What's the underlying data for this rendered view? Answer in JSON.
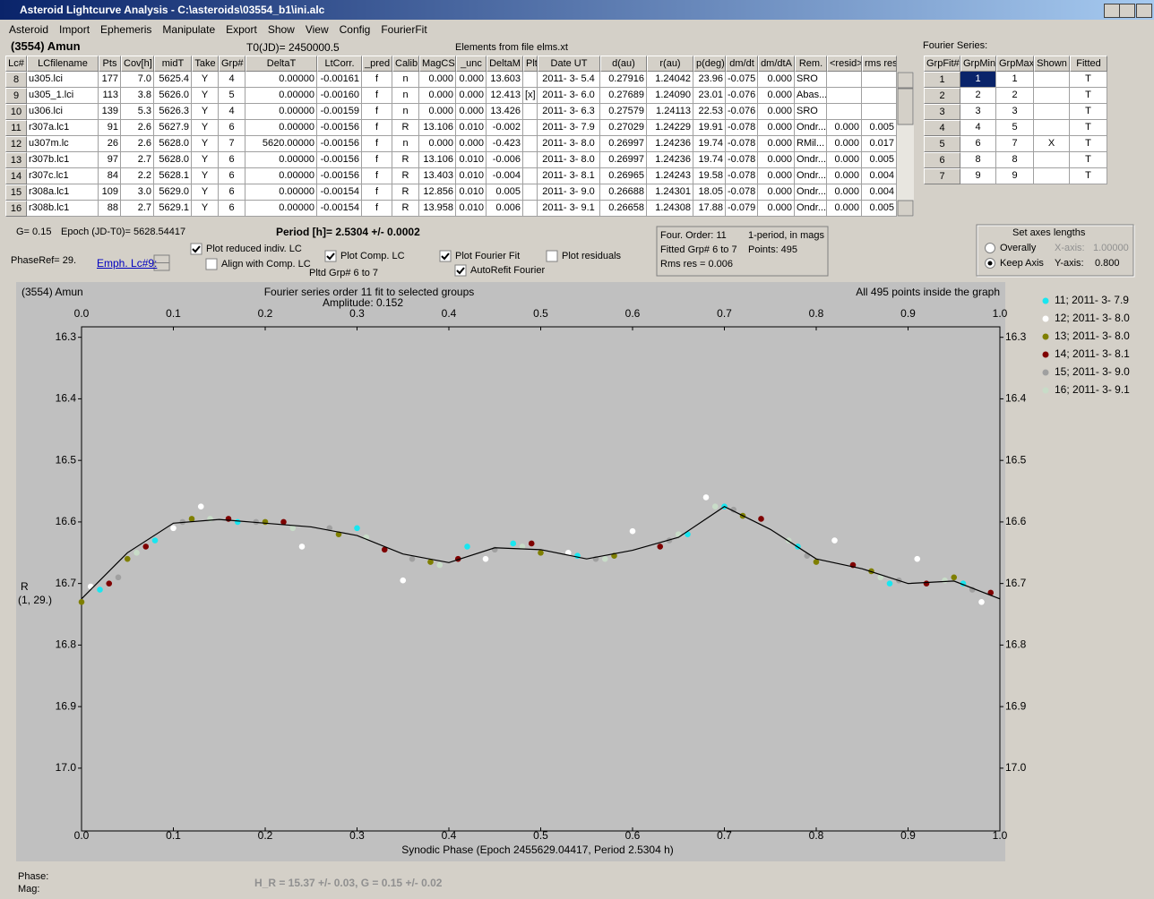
{
  "window": {
    "title": "Asteroid Lightcurve Analysis - C:\\asteroids\\03554_b1\\ini.alc"
  },
  "menu": [
    "Asteroid",
    "Import",
    "Ephemeris",
    "Manipulate",
    "Export",
    "Show",
    "View",
    "Config",
    "FourierFit"
  ],
  "header": {
    "object": "(3554) Amun",
    "t0": "T0(JD)= 2450000.5",
    "elements": "Elements from file elms.xt",
    "fourier_title": "Fourier Series:"
  },
  "table": {
    "columns": [
      "Lc#",
      "LCfilename",
      "Pts",
      "Cov[h]",
      "midT",
      "Take",
      "Grp#",
      "DeltaT",
      "LtCorr.",
      "_pred",
      "Calib.",
      "MagCS",
      "_unc",
      "DeltaM",
      "Plt",
      "Date UT",
      "d(au)",
      "r(au)",
      "p(deg)",
      "dm/dt",
      "dm/dtA",
      "Rem.",
      "<resid>",
      "rms res"
    ],
    "rows": [
      [
        "8",
        "u305.lci",
        "177",
        "7.0",
        "5625.4",
        "Y",
        "4",
        "0.00000",
        "-0.00161",
        "f",
        "n",
        "0.000",
        "0.000",
        "13.603",
        null,
        "2011- 3- 5.4",
        "0.27916",
        "1.24042",
        "23.96",
        "-0.075",
        "0.000",
        "SRO",
        null,
        null
      ],
      [
        "9",
        "u305_1.lci",
        "113",
        "3.8",
        "5626.0",
        "Y",
        "5",
        "0.00000",
        "-0.00160",
        "f",
        "n",
        "0.000",
        "0.000",
        "12.413",
        "[x]",
        "2011- 3- 6.0",
        "0.27689",
        "1.24090",
        "23.01",
        "-0.076",
        "0.000",
        "Abas...",
        null,
        null
      ],
      [
        "10",
        "u306.lci",
        "139",
        "5.3",
        "5626.3",
        "Y",
        "4",
        "0.00000",
        "-0.00159",
        "f",
        "n",
        "0.000",
        "0.000",
        "13.426",
        null,
        "2011- 3- 6.3",
        "0.27579",
        "1.24113",
        "22.53",
        "-0.076",
        "0.000",
        "SRO",
        null,
        null
      ],
      [
        "11",
        "r307a.lc1",
        "91",
        "2.6",
        "5627.9",
        "Y",
        "6",
        "0.00000",
        "-0.00156",
        "f",
        "R",
        "13.106",
        "0.010",
        "-0.002",
        null,
        "2011- 3- 7.9",
        "0.27029",
        "1.24229",
        "19.91",
        "-0.078",
        "0.000",
        "Ondr...",
        "0.000",
        "0.005"
      ],
      [
        "12",
        "u307m.lc",
        "26",
        "2.6",
        "5628.0",
        "Y",
        "7",
        "5620.00000",
        "-0.00156",
        "f",
        "n",
        "0.000",
        "0.000",
        "-0.423",
        null,
        "2011- 3- 8.0",
        "0.26997",
        "1.24236",
        "19.74",
        "-0.078",
        "0.000",
        "RMil...",
        "0.000",
        "0.017"
      ],
      [
        "13",
        "r307b.lc1",
        "97",
        "2.7",
        "5628.0",
        "Y",
        "6",
        "0.00000",
        "-0.00156",
        "f",
        "R",
        "13.106",
        "0.010",
        "-0.006",
        null,
        "2011- 3- 8.0",
        "0.26997",
        "1.24236",
        "19.74",
        "-0.078",
        "0.000",
        "Ondr...",
        "0.000",
        "0.005"
      ],
      [
        "14",
        "r307c.lc1",
        "84",
        "2.2",
        "5628.1",
        "Y",
        "6",
        "0.00000",
        "-0.00156",
        "f",
        "R",
        "13.403",
        "0.010",
        "-0.004",
        null,
        "2011- 3- 8.1",
        "0.26965",
        "1.24243",
        "19.58",
        "-0.078",
        "0.000",
        "Ondr...",
        "0.000",
        "0.004"
      ],
      [
        "15",
        "r308a.lc1",
        "109",
        "3.0",
        "5629.0",
        "Y",
        "6",
        "0.00000",
        "-0.00154",
        "f",
        "R",
        "12.856",
        "0.010",
        "0.005",
        null,
        "2011- 3- 9.0",
        "0.26688",
        "1.24301",
        "18.05",
        "-0.078",
        "0.000",
        "Ondr...",
        "0.000",
        "0.004"
      ],
      [
        "16",
        "r308b.lc1",
        "88",
        "2.7",
        "5629.1",
        "Y",
        "6",
        "0.00000",
        "-0.00154",
        "f",
        "R",
        "13.958",
        "0.010",
        "0.006",
        null,
        "2011- 3- 9.1",
        "0.26658",
        "1.24308",
        "17.88",
        "-0.079",
        "0.000",
        "Ondr...",
        "0.000",
        "0.005"
      ]
    ]
  },
  "fourier_table": {
    "columns": [
      "GrpFit#",
      "GrpMin",
      "GrpMax",
      "Shown",
      "Fitted"
    ],
    "rows": [
      [
        "1",
        "1",
        "1",
        null,
        "T"
      ],
      [
        "2",
        "2",
        "2",
        null,
        "T"
      ],
      [
        "3",
        "3",
        "3",
        null,
        "T"
      ],
      [
        "4",
        "4",
        "5",
        null,
        "T"
      ],
      [
        "5",
        "6",
        "7",
        "X",
        "T"
      ],
      [
        "6",
        "8",
        "8",
        null,
        "T"
      ],
      [
        "7",
        "9",
        "9",
        null,
        "T"
      ]
    ]
  },
  "info": {
    "g": "G= 0.15",
    "epoch": "Epoch (JD-T0)= 5628.54417",
    "period": "Period [h]= 2.5304 +/- 0.0002",
    "phase_ref": "PhaseRef= 29.",
    "emph": "Emph. Lc#9:",
    "pltd_grp": "Pltd Grp#  6   to   7"
  },
  "checkboxes": [
    {
      "label": "Plot reduced indiv. LC",
      "checked": true
    },
    {
      "label": "Align with Comp. LC",
      "checked": false
    },
    {
      "label": "Plot Comp. LC",
      "checked": true
    },
    {
      "label": "Plot Fourier Fit",
      "checked": true
    },
    {
      "label": "AutoRefit Fourier",
      "checked": true
    },
    {
      "label": "Plot residuals",
      "checked": false
    }
  ],
  "fit_box": {
    "order": "Four. Order: 11",
    "mode": "1-period, in mags",
    "fitted": "Fitted Grp# 6 to 7",
    "points": "Points: 495",
    "rms": "Rms res    = 0.006"
  },
  "axes_box": {
    "title": "Set axes lengths",
    "radios": [
      {
        "label": "Overally",
        "checked": false
      },
      {
        "label": "Keep Axis",
        "checked": true
      }
    ],
    "x_label": "X-axis:",
    "x_value": "1.00000",
    "y_label": "Y-axis:",
    "y_value": "0.800"
  },
  "plot": {
    "type": "scatter",
    "corner_label": "(3554) Amun",
    "title": "Fourier series order 11 fit to selected groups",
    "subtitle": "Amplitude: 0.152",
    "note": "All 495 points inside the graph",
    "x_label": "Synodic Phase (Epoch 2455629.04417, Period 2.5304 h)",
    "y_label": "R",
    "y_label2": "(1, 29.)",
    "xlim": [
      0,
      1
    ],
    "ylim": [
      16.283,
      17.102
    ],
    "invert_y": true,
    "xticks": [
      {
        "value": 0,
        "label": "0.0"
      },
      0.1,
      0.2,
      0.3,
      0.4,
      0.5,
      0.6,
      0.7,
      0.8,
      0.9,
      {
        "value": 1,
        "label": "1.0"
      }
    ],
    "yticks": [
      16.3,
      16.4,
      16.5,
      16.6,
      16.7,
      16.8,
      16.9,
      {
        "value": 17,
        "label": "17.0"
      }
    ],
    "series": [
      {
        "name": "11; 2011- 3- 7.9",
        "color": "#19e6f0",
        "x": [
          0.02,
          0.08,
          0.17,
          0.3,
          0.42,
          0.47,
          0.54,
          0.66,
          0.7,
          0.78,
          0.88,
          0.96
        ],
        "values": [
          16.71,
          16.63,
          16.6,
          16.61,
          16.64,
          16.635,
          16.655,
          16.62,
          16.575,
          16.64,
          16.7,
          16.7
        ]
      },
      {
        "name": "12; 2011- 3- 8.0",
        "color": "#ffffff",
        "x": [
          0.01,
          0.1,
          0.13,
          0.24,
          0.35,
          0.44,
          0.53,
          0.6,
          0.68,
          0.82,
          0.91,
          0.98
        ],
        "values": [
          16.705,
          16.61,
          16.575,
          16.64,
          16.695,
          16.66,
          16.65,
          16.615,
          16.56,
          16.63,
          16.66,
          16.73
        ]
      },
      {
        "name": "13; 2011- 3- 8.0",
        "color": "#7f7f00",
        "x": [
          0.0,
          0.05,
          0.12,
          0.2,
          0.28,
          0.38,
          0.5,
          0.58,
          0.72,
          0.8,
          0.86,
          0.95
        ],
        "values": [
          16.73,
          16.66,
          16.595,
          16.6,
          16.62,
          16.665,
          16.65,
          16.655,
          16.59,
          16.665,
          16.68,
          16.69
        ]
      },
      {
        "name": "14; 2011- 3- 8.1",
        "color": "#7f0000",
        "x": [
          0.03,
          0.07,
          0.16,
          0.22,
          0.33,
          0.41,
          0.49,
          0.63,
          0.74,
          0.84,
          0.92,
          0.99
        ],
        "values": [
          16.7,
          16.64,
          16.595,
          16.6,
          16.645,
          16.66,
          16.635,
          16.64,
          16.595,
          16.67,
          16.7,
          16.715
        ]
      },
      {
        "name": "15; 2011- 3- 9.0",
        "color": "#a0a0a0",
        "x": [
          0.04,
          0.11,
          0.19,
          0.27,
          0.36,
          0.45,
          0.56,
          0.64,
          0.71,
          0.79,
          0.89,
          0.97
        ],
        "values": [
          16.69,
          16.6,
          16.6,
          16.61,
          16.66,
          16.645,
          16.66,
          16.63,
          16.58,
          16.655,
          16.695,
          16.71
        ]
      },
      {
        "name": "16; 2011- 3- 9.1",
        "color": "#c8dcc8",
        "x": [
          0.06,
          0.14,
          0.23,
          0.31,
          0.39,
          0.48,
          0.57,
          0.65,
          0.69,
          0.77,
          0.87,
          0.94
        ],
        "values": [
          16.65,
          16.595,
          16.61,
          16.625,
          16.67,
          16.64,
          16.66,
          16.62,
          16.575,
          16.63,
          16.69,
          16.695
        ]
      }
    ],
    "fit": {
      "color": "#000000",
      "x": [
        0,
        0.05,
        0.1,
        0.15,
        0.2,
        0.25,
        0.3,
        0.35,
        0.4,
        0.45,
        0.5,
        0.55,
        0.6,
        0.65,
        0.7,
        0.75,
        0.8,
        0.85,
        0.9,
        0.95,
        1
      ],
      "values": [
        16.725,
        16.65,
        16.602,
        16.596,
        16.602,
        16.608,
        16.622,
        16.652,
        16.666,
        16.642,
        16.645,
        16.66,
        16.646,
        16.625,
        16.575,
        16.612,
        16.66,
        16.676,
        16.7,
        16.696,
        16.725
      ]
    }
  },
  "status": {
    "phase": "Phase:",
    "mag": "Mag:",
    "h_r": "H_R = 15.37 +/- 0.03, G = 0.15 +/- 0.02"
  }
}
